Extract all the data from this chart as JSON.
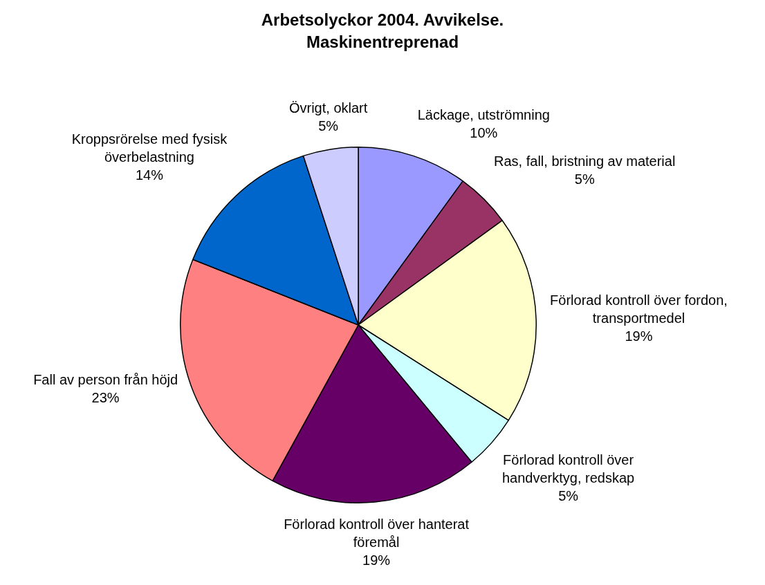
{
  "chart_data": {
    "type": "pie",
    "title": "Arbetsolyckor 2004. Avvikelse. Maskinentreprenad",
    "categories": [
      "Läckage, utströmning",
      "Ras, fall, bristning av material",
      "Förlorad kontroll över fordon, transportmedel",
      "Förlorad kontroll över handverktyg, redskap",
      "Förlorad kontroll över hanterat föremål",
      "Fall av person från höjd",
      "Kroppsrörelse med fysisk överbelastning",
      "Övrigt, oklart"
    ],
    "values": [
      10,
      5,
      19,
      5,
      19,
      23,
      14,
      5
    ],
    "value_labels": [
      "10%",
      "5%",
      "19%",
      "5%",
      "19%",
      "23%",
      "14%",
      "5%"
    ],
    "colors": [
      "#9999ff",
      "#993366",
      "#ffffcc",
      "#ccffff",
      "#660066",
      "#ff8080",
      "#0066cc",
      "#ccccff"
    ],
    "legend": false
  }
}
